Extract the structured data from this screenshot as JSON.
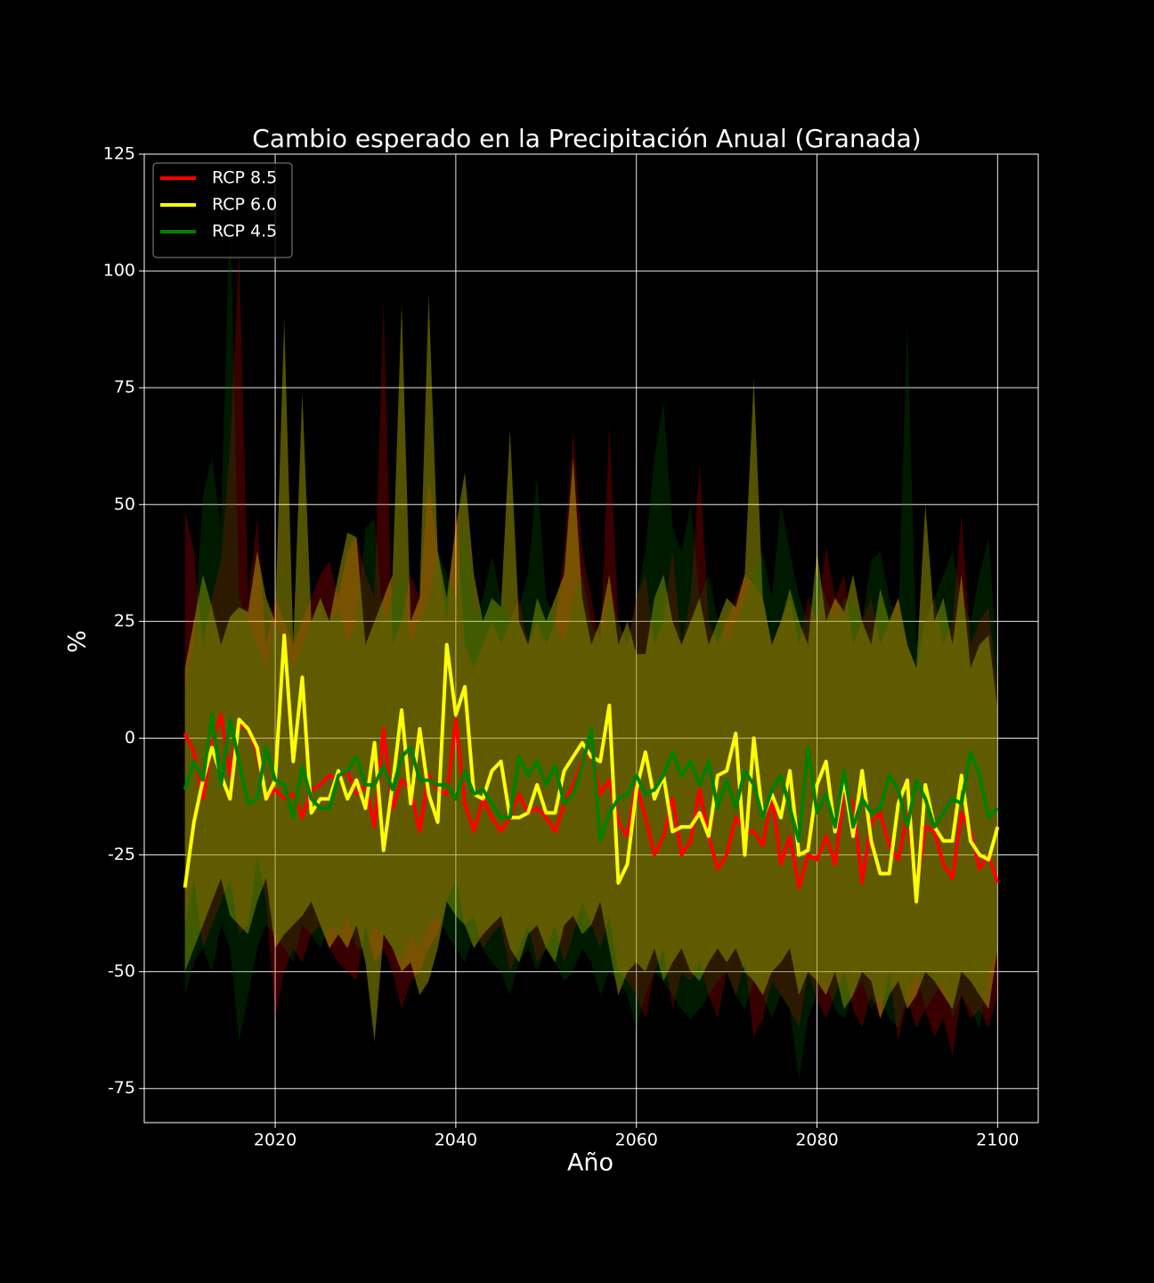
{
  "chart_data": {
    "type": "line",
    "title": "Cambio esperado en la Precipitación Anual (Granada)",
    "x_label": "Año",
    "y_label": "%",
    "x": [
      2010,
      2011,
      2012,
      2013,
      2014,
      2015,
      2016,
      2017,
      2018,
      2019,
      2020,
      2021,
      2022,
      2023,
      2024,
      2025,
      2026,
      2027,
      2028,
      2029,
      2030,
      2031,
      2032,
      2033,
      2034,
      2035,
      2036,
      2037,
      2038,
      2039,
      2040,
      2041,
      2042,
      2043,
      2044,
      2045,
      2046,
      2047,
      2048,
      2049,
      2050,
      2051,
      2052,
      2053,
      2054,
      2055,
      2056,
      2057,
      2058,
      2059,
      2060,
      2061,
      2062,
      2063,
      2064,
      2065,
      2066,
      2067,
      2068,
      2069,
      2070,
      2071,
      2072,
      2073,
      2074,
      2075,
      2076,
      2077,
      2078,
      2079,
      2080,
      2081,
      2082,
      2083,
      2084,
      2085,
      2086,
      2087,
      2088,
      2089,
      2090,
      2091,
      2092,
      2093,
      2094,
      2095,
      2096,
      2097,
      2098,
      2099,
      2100
    ],
    "series": [
      {
        "name": "RCP 8.5",
        "color": "#ff0000",
        "values": [
          1,
          -3,
          -13,
          -1,
          5,
          -8,
          3,
          2,
          -3,
          -13,
          -11,
          -13,
          -12,
          -17,
          -11,
          -10,
          -8,
          -9,
          -7,
          -12,
          -10,
          -19,
          2,
          -15,
          -9,
          -11,
          -20,
          -8,
          -11,
          -12,
          4,
          -14,
          -20,
          -13,
          -17,
          -20,
          -17,
          -12,
          -16,
          -15,
          -17,
          -20,
          -14,
          -10,
          -5,
          -3,
          -12,
          -9,
          -18,
          -21,
          -10,
          -17,
          -25,
          -21,
          -13,
          -25,
          -22,
          -11,
          -21,
          -28,
          -25,
          -17,
          -20,
          -20,
          -23,
          -12,
          -27,
          -21,
          -32,
          -25,
          -26,
          -21,
          -27,
          -11,
          -14,
          -31,
          -18,
          -16,
          -23,
          -26,
          -16,
          -32,
          -19,
          -20,
          -27,
          -30,
          -16,
          -20,
          -28,
          -25,
          -31
        ],
        "upper": [
          49,
          40,
          20,
          30,
          38,
          62,
          105,
          30,
          47,
          20,
          30,
          25,
          20,
          25,
          30,
          35,
          38,
          30,
          40,
          43,
          35,
          30,
          94,
          20,
          25,
          35,
          30,
          55,
          40,
          25,
          50,
          20,
          15,
          20,
          25,
          20,
          25,
          30,
          20,
          25,
          20,
          25,
          40,
          66,
          40,
          30,
          20,
          67,
          25,
          20,
          30,
          35,
          20,
          25,
          40,
          20,
          30,
          59,
          25,
          20,
          25,
          30,
          35,
          33,
          30,
          20,
          25,
          30,
          20,
          30,
          25,
          41,
          30,
          35,
          20,
          25,
          30,
          20,
          25,
          30,
          20,
          15,
          25,
          30,
          20,
          25,
          48,
          20,
          25,
          28,
          10
        ],
        "lower": [
          -40,
          -30,
          -45,
          -40,
          -35,
          -30,
          -42,
          -40,
          -25,
          -35,
          -60,
          -50,
          -45,
          -48,
          -42,
          -40,
          -45,
          -48,
          -50,
          -52,
          -40,
          -48,
          -45,
          -50,
          -58,
          -52,
          -50,
          -45,
          -42,
          -35,
          -30,
          -40,
          -38,
          -45,
          -42,
          -40,
          -50,
          -45,
          -40,
          -48,
          -45,
          -40,
          -48,
          -42,
          -35,
          -40,
          -45,
          -38,
          -50,
          -52,
          -55,
          -60,
          -50,
          -45,
          -58,
          -50,
          -52,
          -48,
          -55,
          -60,
          -50,
          -55,
          -48,
          -64,
          -60,
          -52,
          -55,
          -58,
          -62,
          -50,
          -56,
          -60,
          -55,
          -50,
          -58,
          -62,
          -55,
          -60,
          -50,
          -65,
          -56,
          -62,
          -58,
          -64,
          -60,
          -68,
          -55,
          -60,
          -58,
          -62,
          -55
        ]
      },
      {
        "name": "RCP 6.0",
        "color": "#ffff00",
        "values": [
          -32,
          -18,
          -9,
          -2,
          -8,
          -13,
          4,
          2,
          -2,
          -13,
          -9,
          22,
          -5,
          13,
          -16,
          -13,
          -13,
          -7,
          -13,
          -9,
          -15,
          -1,
          -24,
          -10,
          6,
          -14,
          2,
          -12,
          -18,
          20,
          5,
          11,
          -12,
          -13,
          -7,
          -5,
          -17,
          -17,
          -16,
          -10,
          -16,
          -16,
          -7,
          -4,
          -1,
          -4,
          -5,
          7,
          -31,
          -27,
          -11,
          -3,
          -13,
          -8,
          -20,
          -19,
          -19,
          -16,
          -21,
          -8,
          -7,
          1,
          -25,
          0,
          -17,
          -12,
          -17,
          -7,
          -25,
          -24,
          -10,
          -5,
          -20,
          -9,
          -21,
          -7,
          -22,
          -29,
          -29,
          -14,
          -9,
          -35,
          -10,
          -19,
          -22,
          -22,
          -8,
          -22,
          -25,
          -26,
          -19
        ],
        "upper": [
          15,
          25,
          35,
          28,
          20,
          26,
          28,
          27,
          40,
          30,
          25,
          90,
          20,
          74,
          25,
          30,
          25,
          35,
          44,
          43,
          20,
          25,
          30,
          35,
          93,
          25,
          30,
          95,
          40,
          30,
          45,
          57,
          35,
          25,
          30,
          28,
          66,
          25,
          20,
          30,
          25,
          30,
          35,
          60,
          30,
          20,
          25,
          35,
          20,
          25,
          18,
          18,
          30,
          35,
          25,
          20,
          25,
          30,
          20,
          25,
          30,
          28,
          35,
          77,
          30,
          20,
          25,
          32,
          25,
          20,
          40,
          25,
          30,
          27,
          35,
          25,
          20,
          32,
          25,
          30,
          20,
          15,
          50,
          25,
          30,
          20,
          35,
          15,
          20,
          22,
          6
        ],
        "lower": [
          -50,
          -45,
          -40,
          -35,
          -30,
          -38,
          -40,
          -42,
          -35,
          -30,
          -45,
          -42,
          -40,
          -38,
          -35,
          -40,
          -45,
          -42,
          -45,
          -40,
          -48,
          -65,
          -42,
          -45,
          -50,
          -48,
          -55,
          -52,
          -45,
          -35,
          -38,
          -40,
          -45,
          -42,
          -40,
          -38,
          -45,
          -48,
          -42,
          -40,
          -45,
          -48,
          -40,
          -38,
          -42,
          -40,
          -35,
          -45,
          -55,
          -50,
          -48,
          -50,
          -45,
          -52,
          -48,
          -45,
          -50,
          -52,
          -48,
          -45,
          -48,
          -45,
          -50,
          -52,
          -55,
          -50,
          -48,
          -45,
          -55,
          -50,
          -52,
          -55,
          -50,
          -58,
          -55,
          -50,
          -52,
          -60,
          -55,
          -52,
          -58,
          -55,
          -50,
          -52,
          -55,
          -58,
          -50,
          -52,
          -55,
          -58,
          -45
        ]
      },
      {
        "name": "RCP 4.5",
        "color": "#008000",
        "values": [
          -11,
          -5,
          -9,
          5,
          -10,
          4,
          -5,
          -14,
          -13,
          -2,
          -9,
          -10,
          -17,
          -6,
          -13,
          -15,
          -15,
          -8,
          -7,
          -4,
          -10,
          -10,
          -6,
          -11,
          -4,
          -2,
          -9,
          -9,
          -10,
          -10,
          -13,
          -7,
          -12,
          -11,
          -14,
          -17,
          -17,
          -4,
          -8,
          -5,
          -10,
          -6,
          -14,
          -12,
          -6,
          2,
          -22,
          -16,
          -13,
          -12,
          -8,
          -12,
          -11,
          -8,
          -3,
          -8,
          -5,
          -10,
          -5,
          -15,
          -9,
          -15,
          -7,
          -10,
          -17,
          -11,
          -8,
          -15,
          -22,
          -2,
          -16,
          -12,
          -19,
          -7,
          -19,
          -13,
          -16,
          -15,
          -8,
          -11,
          -19,
          -9,
          -13,
          -19,
          -16,
          -13,
          -14,
          -3,
          -8,
          -17,
          -15
        ],
        "upper": [
          10,
          20,
          52,
          60,
          45,
          115,
          30,
          25,
          20,
          15,
          25,
          20,
          15,
          20,
          25,
          30,
          25,
          28,
          20,
          25,
          45,
          47,
          25,
          30,
          35,
          20,
          25,
          30,
          40,
          35,
          30,
          45,
          25,
          30,
          39,
          30,
          25,
          28,
          35,
          56,
          30,
          25,
          20,
          30,
          35,
          25,
          20,
          30,
          25,
          20,
          30,
          40,
          60,
          72,
          45,
          40,
          50,
          30,
          35,
          25,
          20,
          25,
          30,
          35,
          40,
          30,
          50,
          40,
          30,
          25,
          35,
          30,
          25,
          30,
          28,
          25,
          38,
          40,
          30,
          25,
          89,
          20,
          25,
          30,
          35,
          40,
          30,
          25,
          35,
          43,
          15
        ],
        "lower": [
          -55,
          -48,
          -45,
          -50,
          -40,
          -45,
          -65,
          -55,
          -45,
          -40,
          -42,
          -45,
          -48,
          -40,
          -42,
          -45,
          -40,
          -42,
          -38,
          -45,
          -45,
          -40,
          -42,
          -45,
          -48,
          -42,
          -45,
          -40,
          -38,
          -42,
          -45,
          -48,
          -42,
          -45,
          -48,
          -50,
          -55,
          -48,
          -45,
          -50,
          -45,
          -48,
          -52,
          -50,
          -45,
          -48,
          -55,
          -50,
          -52,
          -55,
          -62,
          -55,
          -50,
          -52,
          -55,
          -58,
          -60,
          -58,
          -55,
          -52,
          -50,
          -55,
          -58,
          -52,
          -55,
          -60,
          -55,
          -58,
          -73,
          -60,
          -55,
          -52,
          -58,
          -60,
          -55,
          -52,
          -58,
          -55,
          -60,
          -62,
          -55,
          -50,
          -58,
          -55,
          -52,
          -60,
          -55,
          -58,
          -62,
          -50,
          -45
        ]
      }
    ],
    "xlim": [
      2005.5,
      2104.5
    ],
    "ylim": [
      -82.3,
      125
    ],
    "xticks": [
      2020,
      2040,
      2060,
      2080,
      2100
    ],
    "yticks": [
      -75,
      -50,
      -25,
      0,
      25,
      50,
      75,
      100,
      125
    ],
    "grid": true,
    "legend": "upper left"
  }
}
